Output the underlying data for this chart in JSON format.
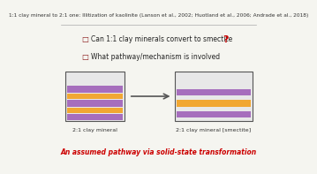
{
  "bg_color": "#f5f5f0",
  "title_line": "1:1 clay mineral to 2:1 one: Illitization of kaolinite",
  "title_refs": "(Lanson et al., 2002; Huotland et al., 2006; Andrade et al., 2018)",
  "bullet1": "Can 1:1 clay minerals convert to smectite",
  "bullet2": "What pathway/mechanism is involved",
  "question_mark": "?",
  "label_left": "2:1 clay mineral",
  "label_right": "2:1 clay mineral [smectite]",
  "footer": "An assumed pathway via solid-state transformation",
  "title_color": "#333333",
  "title_italic_color": "#222222",
  "bullet_color": "#222222",
  "bullet_square_color": "#8B1A1A",
  "question_color": "#cc0000",
  "footer_color": "#cc0000",
  "label_color": "#333333",
  "header_line_color": "#aaaaaa",
  "box_color": "#555555"
}
